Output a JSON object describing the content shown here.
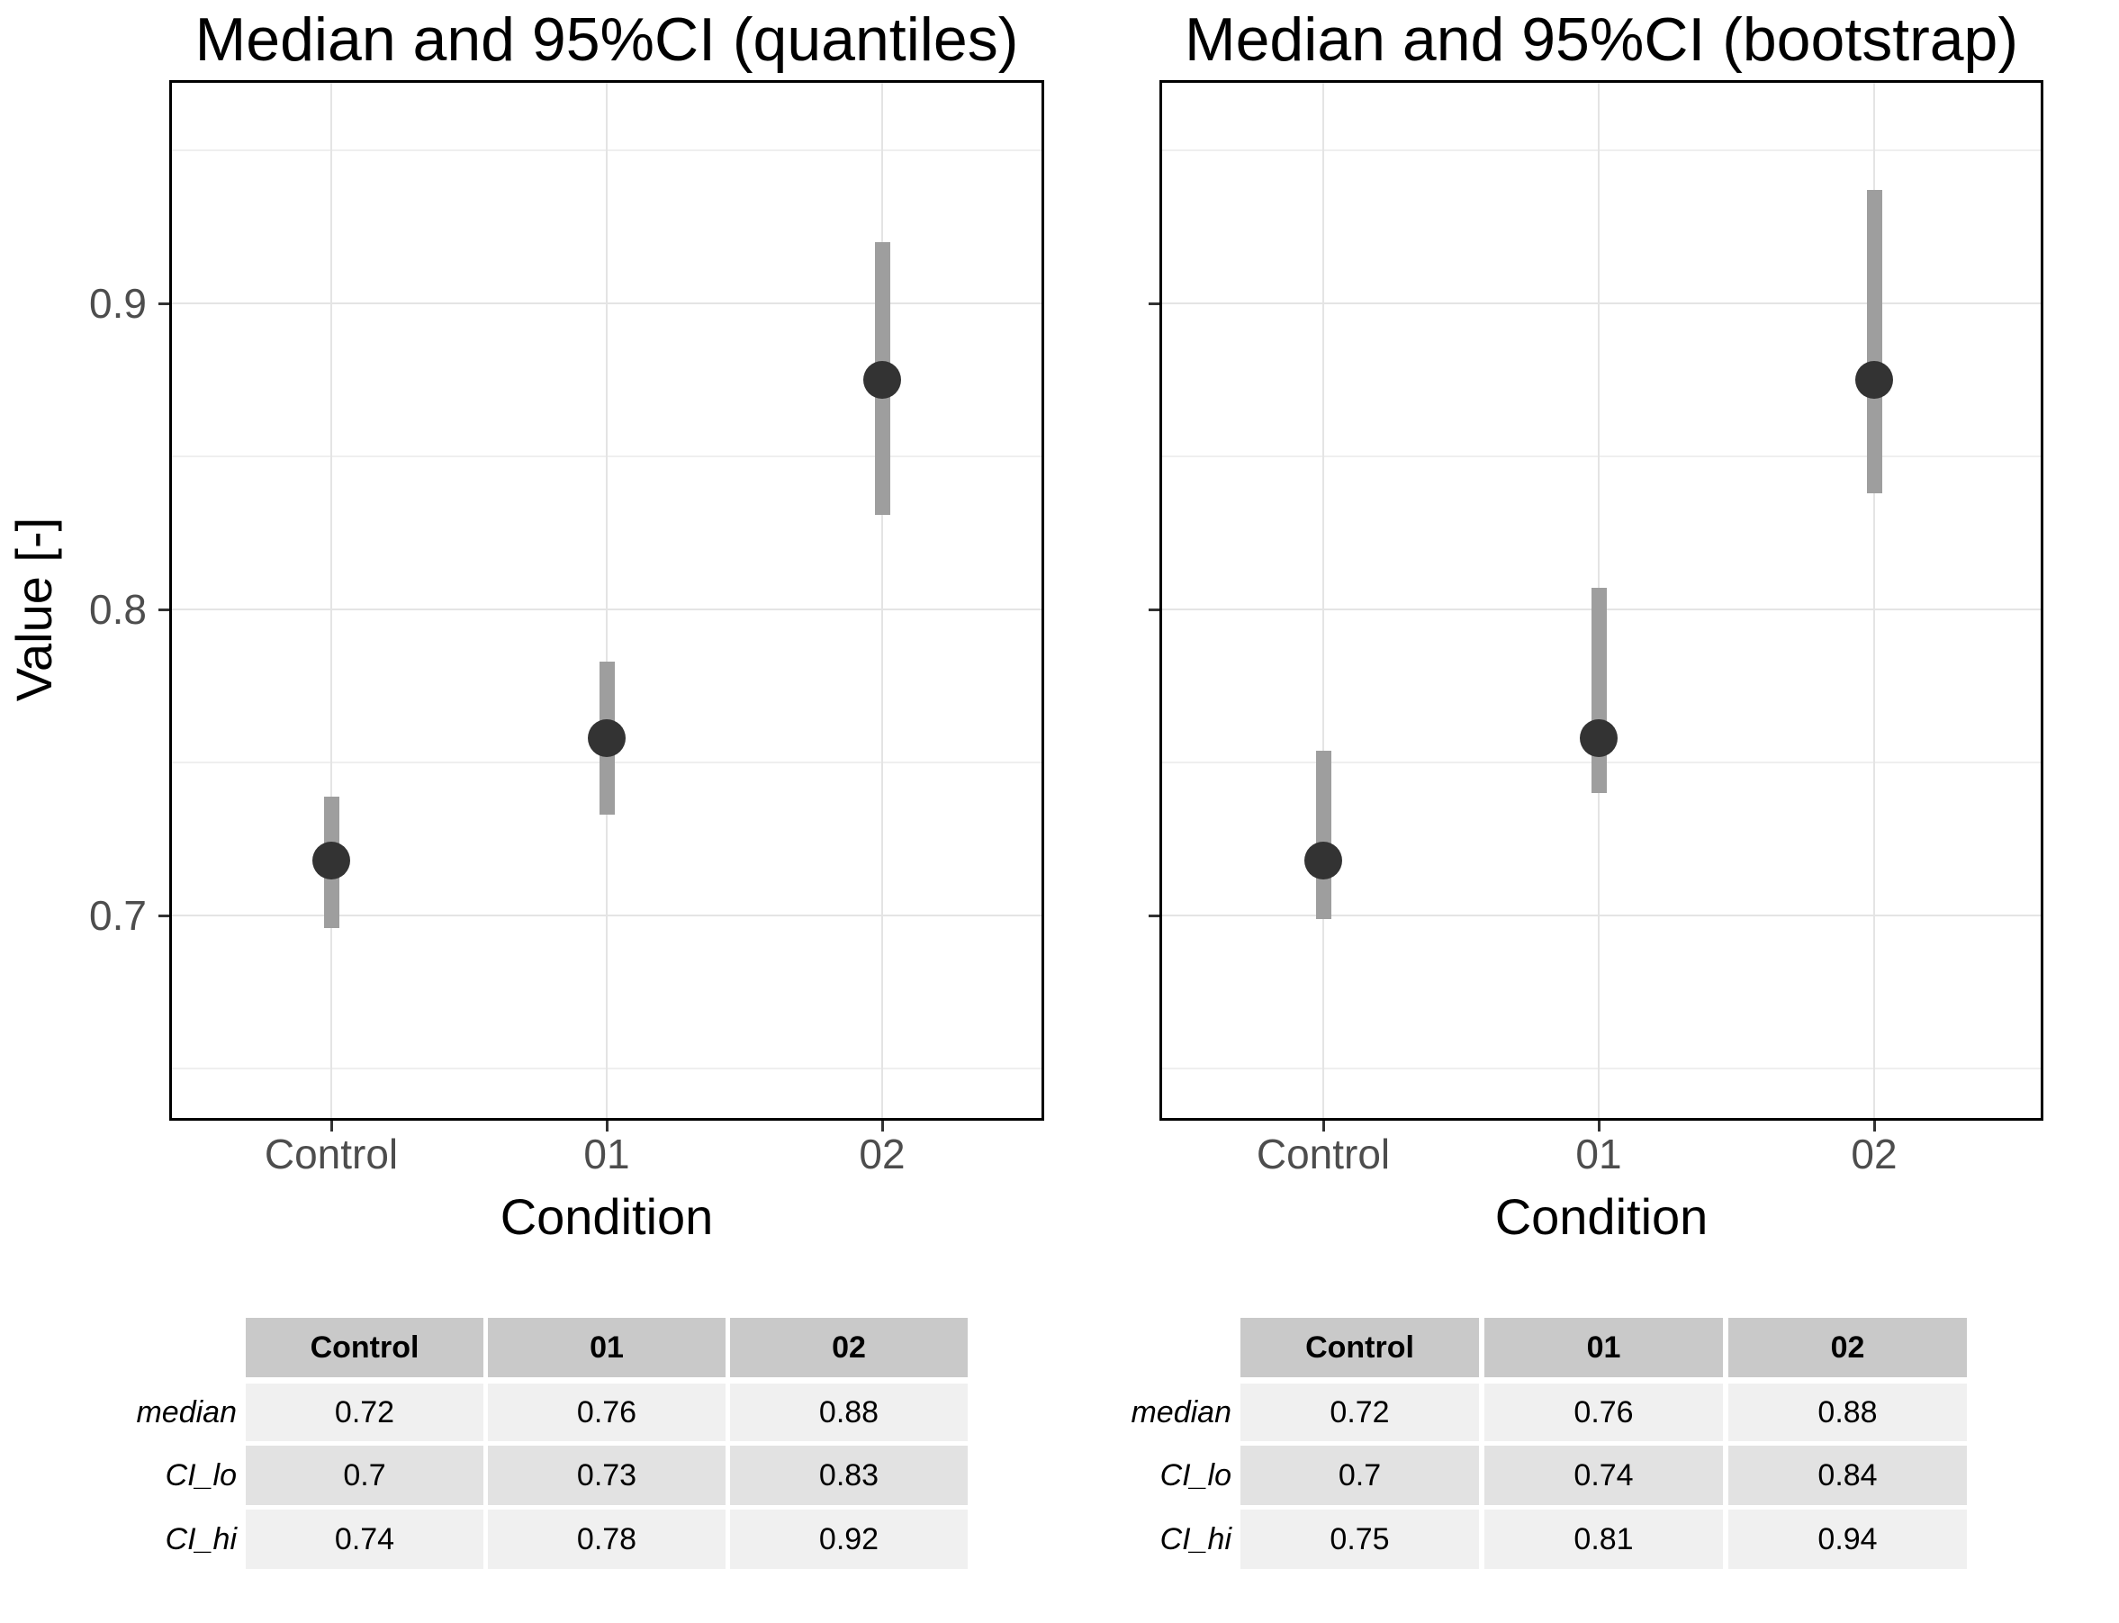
{
  "figure": {
    "background": "#ffffff",
    "shared_y_axis_title": "Value [-]",
    "colors": {
      "point": "#333333",
      "error_bar": "#9e9e9e",
      "grid_major": "#e4e4e4",
      "grid_minor": "#efefef",
      "panel_border": "#000000",
      "tick": "#333333",
      "tick_label": "#4d4d4d",
      "table_header_bg": "#c9c9c9",
      "table_row_bg_light": "#f0f0f0",
      "table_row_bg_dark": "#e2e2e2"
    }
  },
  "chart_data": [
    {
      "type": "scatter",
      "title": "Median and 95%CI (quantiles)",
      "xlabel": "Condition",
      "ylabel": "Value [-]",
      "categories": [
        "Control",
        "01",
        "02"
      ],
      "series": [
        {
          "name": "median",
          "values": [
            0.72,
            0.76,
            0.88
          ]
        },
        {
          "name": "CI_lo",
          "values": [
            0.7,
            0.73,
            0.83
          ]
        },
        {
          "name": "CI_hi",
          "values": [
            0.74,
            0.78,
            0.92
          ]
        }
      ],
      "draw_precise": {
        "median": [
          0.718,
          0.758,
          0.875
        ],
        "ci_lo": [
          0.696,
          0.733,
          0.831
        ],
        "ci_hi": [
          0.739,
          0.783,
          0.92
        ]
      },
      "ylim": [
        0.633,
        0.973
      ],
      "y_major_breaks": [
        0.7,
        0.8,
        0.9
      ],
      "y_minor_breaks": [
        0.65,
        0.75,
        0.85,
        0.95
      ],
      "y_tick_labels": [
        "0.7",
        "0.8",
        "0.9"
      ],
      "show_y_tick_labels": true,
      "grid": true,
      "legend_position": "none",
      "error_bars": true
    },
    {
      "type": "scatter",
      "title": "Median and 95%CI (bootstrap)",
      "xlabel": "Condition",
      "ylabel": "Value [-]",
      "categories": [
        "Control",
        "01",
        "02"
      ],
      "series": [
        {
          "name": "median",
          "values": [
            0.72,
            0.76,
            0.88
          ]
        },
        {
          "name": "CI_lo",
          "values": [
            0.7,
            0.74,
            0.84
          ]
        },
        {
          "name": "CI_hi",
          "values": [
            0.75,
            0.81,
            0.94
          ]
        }
      ],
      "draw_precise": {
        "median": [
          0.718,
          0.758,
          0.875
        ],
        "ci_lo": [
          0.699,
          0.74,
          0.838
        ],
        "ci_hi": [
          0.754,
          0.807,
          0.937
        ]
      },
      "ylim": [
        0.633,
        0.973
      ],
      "y_major_breaks": [
        0.7,
        0.8,
        0.9
      ],
      "y_minor_breaks": [
        0.65,
        0.75,
        0.85,
        0.95
      ],
      "y_tick_labels": [
        "0.7",
        "0.8",
        "0.9"
      ],
      "show_y_tick_labels": false,
      "grid": true,
      "legend_position": "none",
      "error_bars": true
    }
  ],
  "tables": [
    {
      "columns": [
        "Control",
        "01",
        "02"
      ],
      "rows": [
        {
          "label": "median",
          "values": [
            "0.72",
            "0.76",
            "0.88"
          ]
        },
        {
          "label": "CI_lo",
          "values": [
            "0.7",
            "0.73",
            "0.83"
          ]
        },
        {
          "label": "CI_hi",
          "values": [
            "0.74",
            "0.78",
            "0.92"
          ]
        }
      ]
    },
    {
      "columns": [
        "Control",
        "01",
        "02"
      ],
      "rows": [
        {
          "label": "median",
          "values": [
            "0.72",
            "0.76",
            "0.88"
          ]
        },
        {
          "label": "CI_lo",
          "values": [
            "0.7",
            "0.74",
            "0.84"
          ]
        },
        {
          "label": "CI_hi",
          "values": [
            "0.75",
            "0.81",
            "0.94"
          ]
        }
      ]
    }
  ]
}
